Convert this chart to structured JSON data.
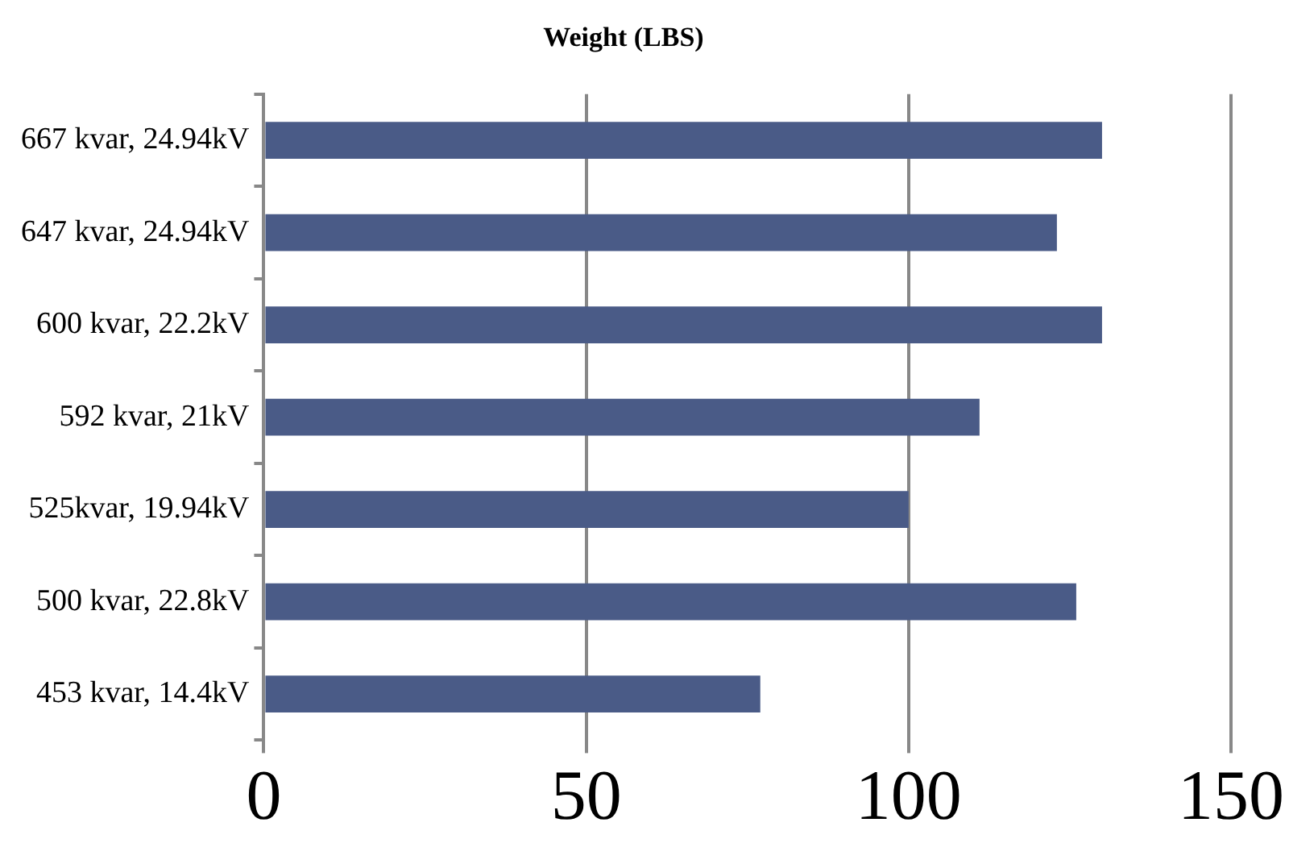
{
  "chart_data": {
    "type": "bar",
    "orientation": "horizontal",
    "title": "Weight (LBS)",
    "categories": [
      "667 kvar, 24.94kV",
      "647 kvar, 24.94kV",
      "600 kvar, 22.2kV",
      "592 kvar, 21kV",
      "525kvar, 19.94kV",
      "500 kvar, 22.8kV",
      "453 kvar, 14.4kV"
    ],
    "values": [
      130,
      123,
      130,
      111,
      100,
      126,
      77
    ],
    "color": "#4a5b87",
    "xlim": [
      0,
      150
    ],
    "xticks": [
      0,
      50,
      100,
      150
    ],
    "grid": "x",
    "legend": false
  }
}
